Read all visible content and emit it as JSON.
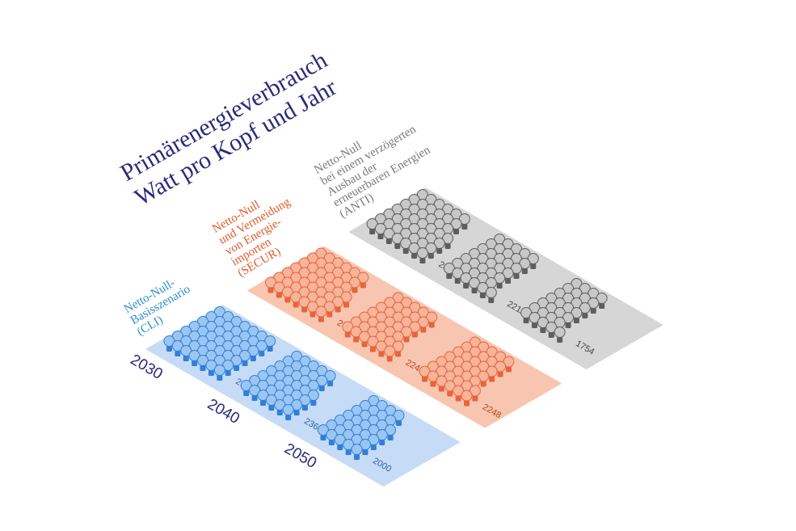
{
  "chart_data": {
    "type": "pictogram",
    "title": "Primärenergieverbrauch",
    "subtitle": "Watt pro Kopf und Jahr",
    "categories": [
      "2030",
      "2040",
      "2050"
    ],
    "series": [
      {
        "name": "Netto-Null-\nBasisszenario\n(CLI)",
        "color": "#2f80d8",
        "values": [
          2999,
          2369,
          2000
        ]
      },
      {
        "name": "Netto-Null\nund Vermeidung\nvon Energie-\nimporten\n(SECUR)",
        "color": "#e8643a",
        "values": [
          2787,
          2248,
          2248
        ]
      },
      {
        "name": "Netto-Null\nbei einem verzögerten\nAusbau der\nerneuerbaren Energien\n(ANTI)",
        "color": "#5e5e5e",
        "values": [
          2818,
          2211,
          1754
        ]
      }
    ]
  }
}
